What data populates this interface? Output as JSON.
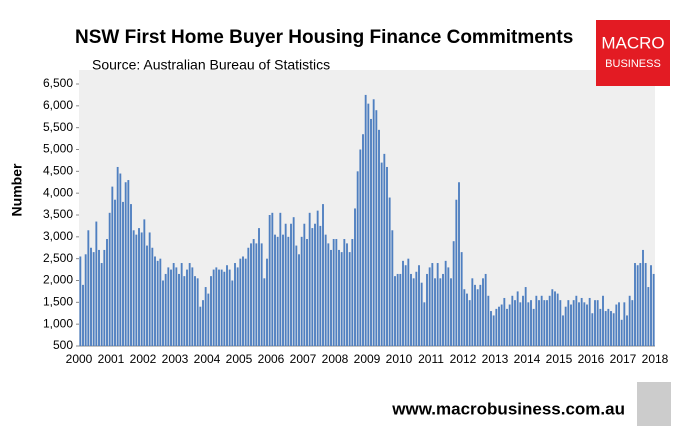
{
  "chart_data": {
    "type": "bar",
    "title": "NSW First Home Buyer Housing Finance Commitments",
    "subtitle": "Source: Australian Bureau of Statistics",
    "y_label": "Number",
    "color": "#4f7fc0",
    "ylim": [
      500,
      6500
    ],
    "yticks": [
      500,
      {
        "value": 1000,
        "label": "1,000"
      },
      {
        "value": 1500,
        "label": "1,500"
      },
      {
        "value": 2000,
        "label": "2,000"
      },
      {
        "value": 2500,
        "label": "2,500"
      },
      {
        "value": 3000,
        "label": "3,000"
      },
      {
        "value": 3500,
        "label": "3,500"
      },
      {
        "value": 4000,
        "label": "4,000"
      },
      {
        "value": 4500,
        "label": "4,500"
      },
      {
        "value": 5000,
        "label": "5,000"
      },
      {
        "value": 5500,
        "label": "5,500"
      },
      {
        "value": 6000,
        "label": "6,000"
      },
      {
        "value": 6500,
        "label": "6,500"
      }
    ],
    "grid": false,
    "categories": [
      "2000",
      null,
      null,
      null,
      null,
      null,
      null,
      null,
      null,
      null,
      null,
      null,
      "2001",
      null,
      null,
      null,
      null,
      null,
      null,
      null,
      null,
      null,
      null,
      null,
      "2002",
      null,
      null,
      null,
      null,
      null,
      null,
      null,
      null,
      null,
      null,
      null,
      "2003",
      null,
      null,
      null,
      null,
      null,
      null,
      null,
      null,
      null,
      null,
      null,
      "2004",
      null,
      null,
      null,
      null,
      null,
      null,
      null,
      null,
      null,
      null,
      null,
      "2005",
      null,
      null,
      null,
      null,
      null,
      null,
      null,
      null,
      null,
      null,
      null,
      "2006",
      null,
      null,
      null,
      null,
      null,
      null,
      null,
      null,
      null,
      null,
      null,
      "2007",
      null,
      null,
      null,
      null,
      null,
      null,
      null,
      null,
      null,
      null,
      null,
      "2008",
      null,
      null,
      null,
      null,
      null,
      null,
      null,
      null,
      null,
      null,
      null,
      "2009",
      null,
      null,
      null,
      null,
      null,
      null,
      null,
      null,
      null,
      null,
      null,
      "2010",
      null,
      null,
      null,
      null,
      null,
      null,
      null,
      null,
      null,
      null,
      null,
      "2011",
      null,
      null,
      null,
      null,
      null,
      null,
      null,
      null,
      null,
      null,
      null,
      "2012",
      null,
      null,
      null,
      null,
      null,
      null,
      null,
      null,
      null,
      null,
      null,
      "2013",
      null,
      null,
      null,
      null,
      null,
      null,
      null,
      null,
      null,
      null,
      null,
      "2014",
      null,
      null,
      null,
      null,
      null,
      null,
      null,
      null,
      null,
      null,
      null,
      "2015",
      null,
      null,
      null,
      null,
      null,
      null,
      null,
      null,
      null,
      null,
      null,
      "2016",
      null,
      null,
      null,
      null,
      null,
      null,
      null,
      null,
      null,
      null,
      null,
      "2017",
      null,
      null,
      null,
      null,
      null,
      null,
      null,
      null,
      null,
      null,
      null,
      "2018"
    ],
    "values": [
      2550,
      1900,
      2600,
      3150,
      2750,
      2650,
      3350,
      2700,
      2400,
      2700,
      2950,
      3550,
      4150,
      3850,
      4600,
      4450,
      3800,
      4250,
      4300,
      3750,
      3150,
      3050,
      3200,
      3100,
      3400,
      2800,
      3100,
      2750,
      2550,
      2450,
      2500,
      2000,
      2150,
      2300,
      2250,
      2400,
      2300,
      2150,
      2400,
      2100,
      2250,
      2400,
      2300,
      2100,
      2050,
      1400,
      1550,
      1850,
      1700,
      2100,
      2250,
      2300,
      2250,
      2250,
      2200,
      2350,
      2250,
      2000,
      2400,
      2300,
      2500,
      2550,
      2500,
      2750,
      2850,
      2950,
      2850,
      3200,
      2850,
      2050,
      2500,
      3500,
      3550,
      3050,
      3000,
      3550,
      3050,
      3300,
      3000,
      3300,
      3450,
      2800,
      2600,
      3000,
      3300,
      2950,
      3550,
      3200,
      3300,
      3600,
      3250,
      3750,
      3050,
      2850,
      2700,
      2950,
      2950,
      2700,
      2650,
      2950,
      2850,
      2650,
      2950,
      3650,
      4500,
      5000,
      5350,
      6250,
      6050,
      5700,
      6150,
      5900,
      5450,
      4700,
      4900,
      4600,
      3900,
      3150,
      2100,
      2150,
      2150,
      2450,
      2350,
      2500,
      2150,
      2050,
      2200,
      2350,
      1950,
      1500,
      2150,
      2300,
      2400,
      2050,
      2400,
      2050,
      2150,
      2450,
      2300,
      2050,
      2900,
      3850,
      4250,
      2650,
      1800,
      1700,
      1550,
      2050,
      1900,
      1800,
      1900,
      2050,
      2150,
      1650,
      1300,
      1200,
      1350,
      1400,
      1450,
      1600,
      1350,
      1450,
      1650,
      1550,
      1750,
      1500,
      1650,
      1850,
      1500,
      1550,
      1350,
      1650,
      1550,
      1650,
      1550,
      1550,
      1650,
      1800,
      1750,
      1700,
      1550,
      1200,
      1400,
      1550,
      1450,
      1550,
      1650,
      1500,
      1600,
      1500,
      1450,
      1600,
      1250,
      1550,
      1550,
      1350,
      1650,
      1300,
      1350,
      1300,
      1250,
      1450,
      1500,
      1100,
      1500,
      1200,
      1650,
      1550,
      2400,
      2350,
      2400,
      2700,
      2400,
      1850,
      2350,
      2150,
      null
    ]
  },
  "logo": {
    "line1": "MACRO",
    "line2": "BUSINESS"
  },
  "footer": "www.macrobusiness.com.au"
}
